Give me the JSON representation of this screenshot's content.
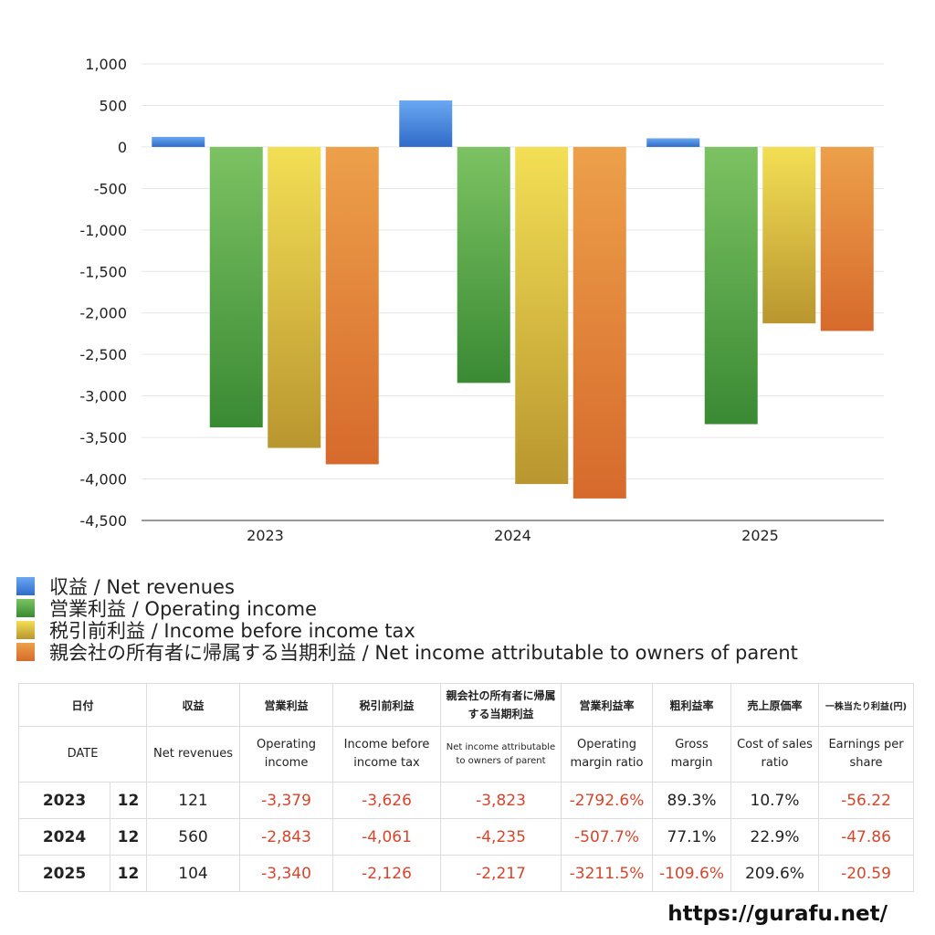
{
  "chart_data": {
    "type": "bar",
    "categories": [
      "2023",
      "2024",
      "2025"
    ],
    "series": [
      {
        "name": "収益 / Net revenues",
        "values": [
          121,
          560,
          104
        ],
        "color": "#3f7fdd"
      },
      {
        "name": "営業利益 / Operating income",
        "values": [
          -3379,
          -2843,
          -3340
        ],
        "color": "#4fa23b"
      },
      {
        "name": "税引前利益 / Income before income tax",
        "values": [
          -3626,
          -4061,
          -2126
        ],
        "color": "#d9b83a"
      },
      {
        "name": "親会社の所有者に帰属する当期利益 / Net income attributable to owners of parent",
        "values": [
          -3823,
          -4235,
          -2217
        ],
        "color": "#e07b2e"
      }
    ],
    "ylim": [
      -4500,
      1000
    ],
    "yticks": [
      1000,
      500,
      0,
      -500,
      -1000,
      -1500,
      -2000,
      -2500,
      -3000,
      -3500,
      -4000,
      -4500
    ],
    "ytick_labels": [
      "1,000",
      "500",
      "0",
      "-500",
      "-1,000",
      "-1,500",
      "-2,000",
      "-2,500",
      "-3,000",
      "-3,500",
      "-4,000",
      "-4,500"
    ],
    "grid": true,
    "legend_position": "bottom"
  },
  "table": {
    "headers_jp": [
      "日付",
      "収益",
      "営業利益",
      "税引前利益",
      "親会社の所有者に帰属する当期利益",
      "営業利益率",
      "粗利益率",
      "売上原価率",
      "一株当たり利益(円)"
    ],
    "headers_en": [
      "DATE",
      "Net revenues",
      "Operating income",
      "Income before income tax",
      "Net income attributable to owners of parent",
      "Operating margin ratio",
      "Gross margin",
      "Cost of sales ratio",
      "Earnings per share"
    ],
    "rows": [
      {
        "year": "2023",
        "month": "12",
        "revenue": "121",
        "op": "-3,379",
        "pretax": "-3,626",
        "net": "-3,823",
        "opm": "-2792.6%",
        "gm": "89.3%",
        "cost": "10.7%",
        "eps": "-56.22"
      },
      {
        "year": "2024",
        "month": "12",
        "revenue": "560",
        "op": "-2,843",
        "pretax": "-4,061",
        "net": "-4,235",
        "opm": "-507.7%",
        "gm": "77.1%",
        "cost": "22.9%",
        "eps": "-47.86"
      },
      {
        "year": "2025",
        "month": "12",
        "revenue": "104",
        "op": "-3,340",
        "pretax": "-2,126",
        "net": "-2,217",
        "opm": "-3211.5%",
        "gm": "-109.6%",
        "cost": "209.6%",
        "eps": "-20.59"
      }
    ]
  },
  "footer": {
    "url": "https://gurafu.net/"
  }
}
